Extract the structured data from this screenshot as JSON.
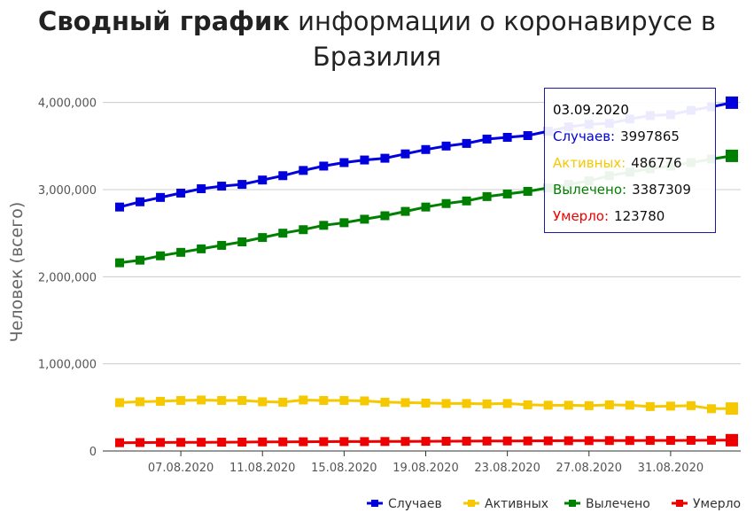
{
  "title": {
    "bold": "Сводный график",
    "rest_line1": " информации о коронавирусе в",
    "line2": "Бразилия"
  },
  "chart_data": {
    "type": "line",
    "ylabel": "Человек (всего)",
    "ylim": [
      0,
      4200000
    ],
    "y_ticks": [
      0,
      1000000,
      2000000,
      3000000,
      4000000
    ],
    "y_tick_labels": [
      "0",
      "1,000,000",
      "2,000,000",
      "3,000,000",
      "4,000,000"
    ],
    "x": [
      "04.08.2020",
      "05.08.2020",
      "06.08.2020",
      "07.08.2020",
      "08.08.2020",
      "09.08.2020",
      "10.08.2020",
      "11.08.2020",
      "12.08.2020",
      "13.08.2020",
      "14.08.2020",
      "15.08.2020",
      "16.08.2020",
      "17.08.2020",
      "18.08.2020",
      "19.08.2020",
      "20.08.2020",
      "21.08.2020",
      "22.08.2020",
      "23.08.2020",
      "24.08.2020",
      "25.08.2020",
      "26.08.2020",
      "27.08.2020",
      "28.08.2020",
      "29.08.2020",
      "30.08.2020",
      "31.08.2020",
      "01.09.2020",
      "02.09.2020",
      "03.09.2020"
    ],
    "x_tick_labels": [
      "07.08.2020",
      "11.08.2020",
      "15.08.2020",
      "19.08.2020",
      "23.08.2020",
      "27.08.2020",
      "31.08.2020"
    ],
    "grid": "horizontal",
    "legend_position": "bottom-right",
    "series": [
      {
        "name": "Случаев",
        "color": "#0000dd",
        "values": [
          2800000,
          2860000,
          2910000,
          2960000,
          3010000,
          3040000,
          3060000,
          3110000,
          3160000,
          3220000,
          3270000,
          3310000,
          3340000,
          3360000,
          3410000,
          3460000,
          3500000,
          3530000,
          3580000,
          3600000,
          3620000,
          3670000,
          3720000,
          3750000,
          3760000,
          3810000,
          3850000,
          3860000,
          3910000,
          3950000,
          3997865
        ]
      },
      {
        "name": "Активных",
        "color": "#f5c800",
        "values": [
          555000,
          565000,
          570000,
          580000,
          585000,
          580000,
          580000,
          565000,
          560000,
          585000,
          580000,
          580000,
          575000,
          560000,
          555000,
          550000,
          545000,
          545000,
          540000,
          545000,
          530000,
          525000,
          525000,
          520000,
          530000,
          525000,
          510000,
          515000,
          520000,
          485000,
          486776
        ]
      },
      {
        "name": "Вылечено",
        "color": "#008000",
        "values": [
          2160000,
          2190000,
          2240000,
          2280000,
          2320000,
          2360000,
          2400000,
          2450000,
          2500000,
          2540000,
          2590000,
          2620000,
          2660000,
          2700000,
          2750000,
          2800000,
          2840000,
          2870000,
          2920000,
          2950000,
          2980000,
          3020000,
          3060000,
          3100000,
          3160000,
          3200000,
          3240000,
          3270000,
          3310000,
          3350000,
          3387309
        ]
      },
      {
        "name": "Умерло",
        "color": "#ee0000",
        "values": [
          95000,
          97000,
          98000,
          99000,
          100000,
          101000,
          102000,
          104000,
          105000,
          106000,
          107000,
          108000,
          108000,
          109000,
          110000,
          111000,
          112000,
          113000,
          114000,
          115000,
          115500,
          116500,
          117500,
          118500,
          119500,
          120000,
          121000,
          121500,
          122500,
          123000,
          123780
        ]
      }
    ],
    "tooltip": {
      "date": "03.09.2020",
      "rows": [
        {
          "label": "Случаев:",
          "value": "3997865",
          "color": "#0000dd"
        },
        {
          "label": "Активных:",
          "value": "486776",
          "color": "#f5c800"
        },
        {
          "label": "Вылечено:",
          "value": "3387309",
          "color": "#008000"
        },
        {
          "label": "Умерло:",
          "value": "123780",
          "color": "#ee0000"
        }
      ]
    }
  }
}
